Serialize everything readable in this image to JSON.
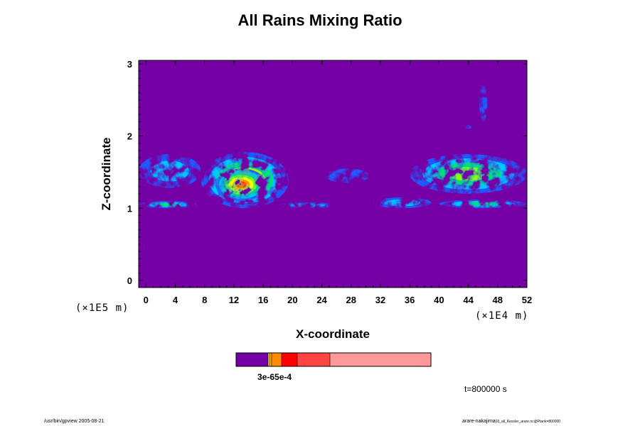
{
  "chart_data": {
    "type": "heatmap",
    "title": "All Rains Mixing Ratio",
    "xlabel": "X-coordinate",
    "ylabel": "Z-coordinate",
    "x_scale_label": "(×1E4 m)",
    "y_scale_label": "(×1E5 m)",
    "xlim": [
      -1,
      52
    ],
    "ylim": [
      -0.1,
      3.05
    ],
    "x_ticks": [
      0,
      4,
      8,
      12,
      16,
      20,
      24,
      28,
      32,
      36,
      40,
      44,
      48,
      52
    ],
    "y_ticks": [
      0,
      1,
      2,
      3
    ],
    "background_color": "#7400a6",
    "colorbar": {
      "colors": [
        "#7400a6",
        "#ffa500",
        "#ff8c00",
        "#ff0000",
        "#ff4444",
        "#ff9999"
      ],
      "labels": "3e-65e-4"
    },
    "rain_regions": [
      {
        "x": [
          -1,
          7.5
        ],
        "z": [
          1.28,
          1.75
        ],
        "intensity": 0.25
      },
      {
        "x": [
          -1,
          7
        ],
        "z": [
          1.0,
          1.1
        ],
        "intensity": 0.45
      },
      {
        "x": [
          7.5,
          19.5
        ],
        "z": [
          1.0,
          1.78
        ],
        "intensity": 0.7
      },
      {
        "x": [
          9.5,
          16.5
        ],
        "z": [
          1.1,
          1.55
        ],
        "intensity": 0.95
      },
      {
        "x": [
          18,
          26
        ],
        "z": [
          1.0,
          1.08
        ],
        "intensity": 0.35
      },
      {
        "x": [
          24.5,
          30.5
        ],
        "z": [
          1.35,
          1.55
        ],
        "intensity": 0.15
      },
      {
        "x": [
          31,
          39
        ],
        "z": [
          1.0,
          1.15
        ],
        "intensity": 0.35
      },
      {
        "x": [
          36,
          52
        ],
        "z": [
          1.2,
          1.75
        ],
        "intensity": 0.5
      },
      {
        "x": [
          40,
          52
        ],
        "z": [
          1.0,
          1.12
        ],
        "intensity": 0.4
      },
      {
        "x": [
          45.5,
          46.6
        ],
        "z": [
          2.2,
          2.7
        ],
        "intensity": 0.15
      },
      {
        "x": [
          43.5,
          44.5
        ],
        "z": [
          2.1,
          2.15
        ],
        "intensity": 0.2
      }
    ]
  },
  "annotations": {
    "time": "t=800000 s",
    "footer_left": "/usr/bin/gpview 2005-08-21",
    "footer_right_main": "arare-nakajima",
    "footer_right_small": "03_all_Kessler_arare.nc@Ptank=800000"
  }
}
